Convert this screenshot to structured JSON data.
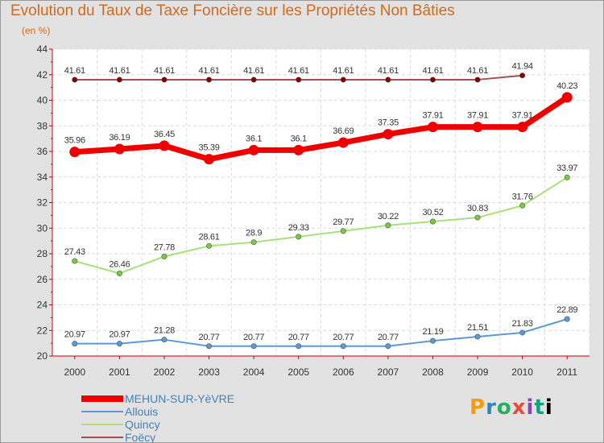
{
  "title": "Evolution du Taux de Taxe Foncière sur les Propriétés Non Bâties",
  "subtitle": "(en %)",
  "logo": [
    "P",
    "r",
    "o",
    "x",
    "i",
    "t",
    "i"
  ],
  "chart_data": {
    "type": "line",
    "title": "Evolution du Taux de Taxe Foncière sur les Propriétés Non Bâties",
    "ylabel": "(en %)",
    "xlabel": "",
    "x": [
      "2000",
      "2001",
      "2002",
      "2003",
      "2004",
      "2005",
      "2006",
      "2007",
      "2008",
      "2009",
      "2010",
      "2011"
    ],
    "ylim": [
      20,
      44
    ],
    "yticks": [
      20,
      22,
      24,
      26,
      28,
      30,
      32,
      34,
      36,
      38,
      40,
      42,
      44
    ],
    "grid": true,
    "legend_position": "bottom-left",
    "series": [
      {
        "name": "MEHUN-SUR-YèVRE",
        "color": "#ee0000",
        "emphasis": true,
        "values": [
          35.96,
          36.19,
          36.45,
          35.39,
          36.1,
          36.1,
          36.69,
          37.35,
          37.91,
          37.91,
          37.91,
          40.23
        ],
        "labels": [
          "35.96",
          "36.19",
          "36.45",
          "35.39",
          "36.1",
          "36.1",
          "36.69",
          "37.35",
          "37.91",
          "37.91",
          "37.91",
          "40.23"
        ]
      },
      {
        "name": "Allouis",
        "color": "#5b9bd5",
        "marker_fill": "#5b9bd5",
        "values": [
          20.97,
          20.97,
          21.28,
          20.77,
          20.77,
          20.77,
          20.77,
          20.77,
          21.19,
          21.51,
          21.83,
          22.89
        ],
        "labels": [
          "20.97",
          "20.97",
          "21.28",
          "20.77",
          "20.77",
          "20.77",
          "20.77",
          "20.77",
          "21.19",
          "21.51",
          "21.83",
          "22.89"
        ]
      },
      {
        "name": "Quincy",
        "color": "#a8e07a",
        "marker_fill": "#7ac943",
        "values": [
          27.43,
          26.46,
          27.78,
          28.61,
          28.9,
          29.33,
          29.77,
          30.22,
          30.52,
          30.83,
          31.76,
          33.97
        ],
        "labels": [
          "27.43",
          "26.46",
          "27.78",
          "28.61",
          "28.9",
          "29.33",
          "29.77",
          "30.22",
          "30.52",
          "30.83",
          "31.76",
          "33.97"
        ]
      },
      {
        "name": "Foëcy",
        "color": "#a05050",
        "marker_fill": "#800000",
        "values": [
          41.61,
          41.61,
          41.61,
          41.61,
          41.61,
          41.61,
          41.61,
          41.61,
          41.61,
          41.61,
          41.94,
          null
        ],
        "labels": [
          "41.61",
          "41.61",
          "41.61",
          "41.61",
          "41.61",
          "41.61",
          "41.61",
          "41.61",
          "41.61",
          "41.61",
          "41.94",
          ""
        ]
      }
    ]
  }
}
